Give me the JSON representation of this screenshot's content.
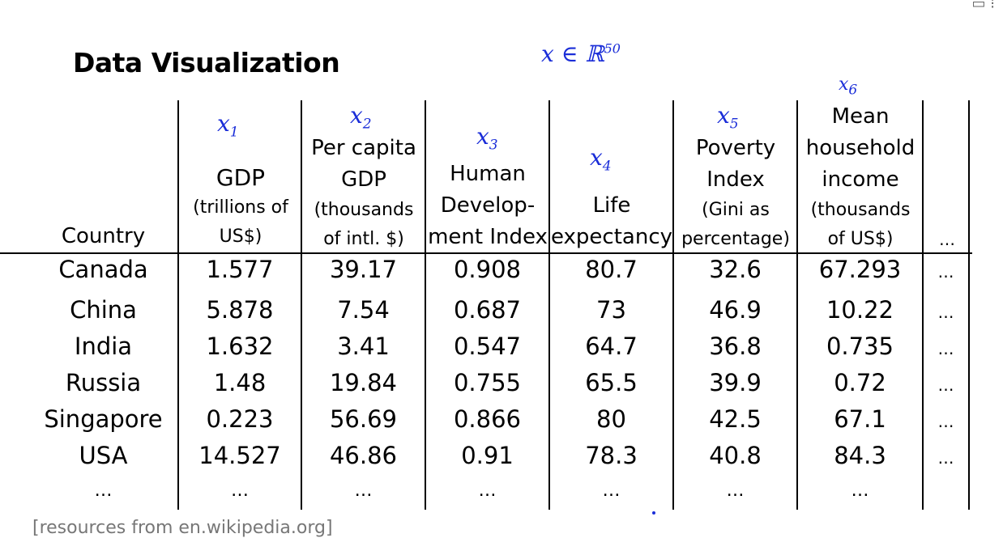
{
  "title": "Data Visualization",
  "annotations": {
    "space": "x ∈ ℝ",
    "space_exp": "50",
    "x1": "x",
    "x1_sub": "1",
    "x2": "x",
    "x2_sub": "2",
    "x3": "x",
    "x3_sub": "3",
    "x4": "x",
    "x4_sub": "4",
    "x5": "x",
    "x5_sub": "5",
    "x6": "x",
    "x6_sub": "6"
  },
  "headers": {
    "country": "Country",
    "gdp": [
      "GDP",
      "(trillions of",
      "US$)"
    ],
    "per_capita": [
      "Per capita",
      "GDP",
      "(thousands",
      "of intl. $)"
    ],
    "hdi": [
      "Human",
      "Develop-",
      "ment Index"
    ],
    "life": [
      "Life",
      "expectancy"
    ],
    "poverty": [
      "Poverty",
      "Index",
      "(Gini as",
      "percentage)"
    ],
    "income": [
      "Mean",
      "household",
      "income",
      "(thousands",
      "of US$)"
    ],
    "more": "…"
  },
  "rows": [
    [
      "Canada",
      "1.577",
      "39.17",
      "0.908",
      "80.7",
      "32.6",
      "67.293",
      "…"
    ],
    [
      "China",
      "5.878",
      "7.54",
      "0.687",
      "73",
      "46.9",
      "10.22",
      "…"
    ],
    [
      "India",
      "1.632",
      "3.41",
      "0.547",
      "64.7",
      "36.8",
      "0.735",
      "…"
    ],
    [
      "Russia",
      "1.48",
      "19.84",
      "0.755",
      "65.5",
      "39.9",
      "0.72",
      "…"
    ],
    [
      "Singapore",
      "0.223",
      "56.69",
      "0.866",
      "80",
      "42.5",
      "67.1",
      "…"
    ],
    [
      "USA",
      "14.527",
      "46.86",
      "0.91",
      "78.3",
      "40.8",
      "84.3",
      "…"
    ],
    [
      "…",
      "…",
      "…",
      "…",
      "…",
      "…",
      "…",
      ""
    ]
  ],
  "source": "[resources from en.wikipedia.org]"
}
